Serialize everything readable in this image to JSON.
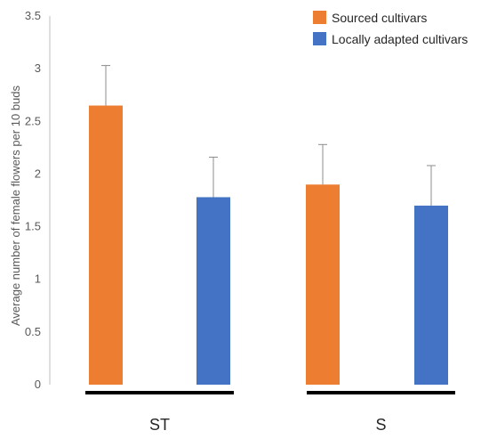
{
  "chart_data": {
    "type": "bar",
    "ylabel": "Average number of female flowers per 10 buds",
    "xlabel": "",
    "ylim": [
      0,
      3.5
    ],
    "yticks": [
      "0",
      "0.5",
      "1",
      "1.5",
      "2",
      "2.5",
      "3",
      "3.5"
    ],
    "grid": false,
    "legend_position": "top-right",
    "groups": [
      "ST",
      "S"
    ],
    "series": [
      {
        "name": "Sourced cultivars",
        "color": "#ED7D31",
        "values": [
          2.65,
          1.9
        ],
        "errors": [
          0.38,
          0.38
        ]
      },
      {
        "name": "Locally adapted cultivars",
        "color": "#4472C4",
        "values": [
          1.78,
          1.7
        ],
        "errors": [
          0.38,
          0.38
        ]
      }
    ]
  }
}
